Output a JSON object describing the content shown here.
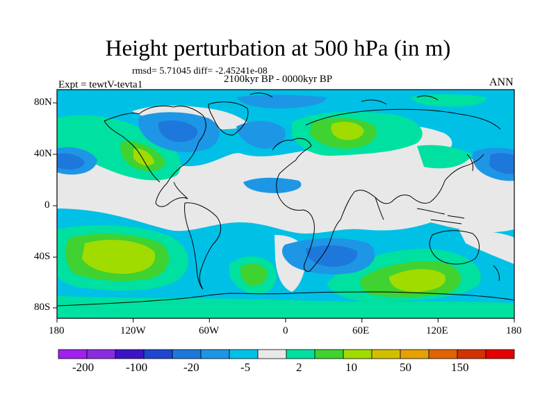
{
  "title": "Height perturbation at 500 hPa (in m)",
  "stats_line": "rmsd= 5.71045 diff= -2.45241e-08",
  "period": "2100kyr BP - 0000kyr BP",
  "experiment": "Expt = tewtV-tevta1",
  "season": "ANN",
  "lat_labels": [
    "80N",
    "40N",
    "0",
    "40S",
    "80S"
  ],
  "lon_labels": [
    "180",
    "120W",
    "60W",
    "0",
    "60E",
    "120E",
    "180"
  ],
  "colorbar": {
    "colors": [
      "#a020f0",
      "#8a2be2",
      "#3c14c8",
      "#1e46d2",
      "#1e78dc",
      "#1e96e6",
      "#00c0e6",
      "#e8e8e8",
      "#00e0a0",
      "#40d230",
      "#a0dc00",
      "#d2c000",
      "#e6a000",
      "#e06400",
      "#d23200",
      "#e60000"
    ],
    "labels": [
      "-200",
      "-100",
      "-20",
      "-5",
      "2",
      "10",
      "50",
      "150"
    ]
  }
}
